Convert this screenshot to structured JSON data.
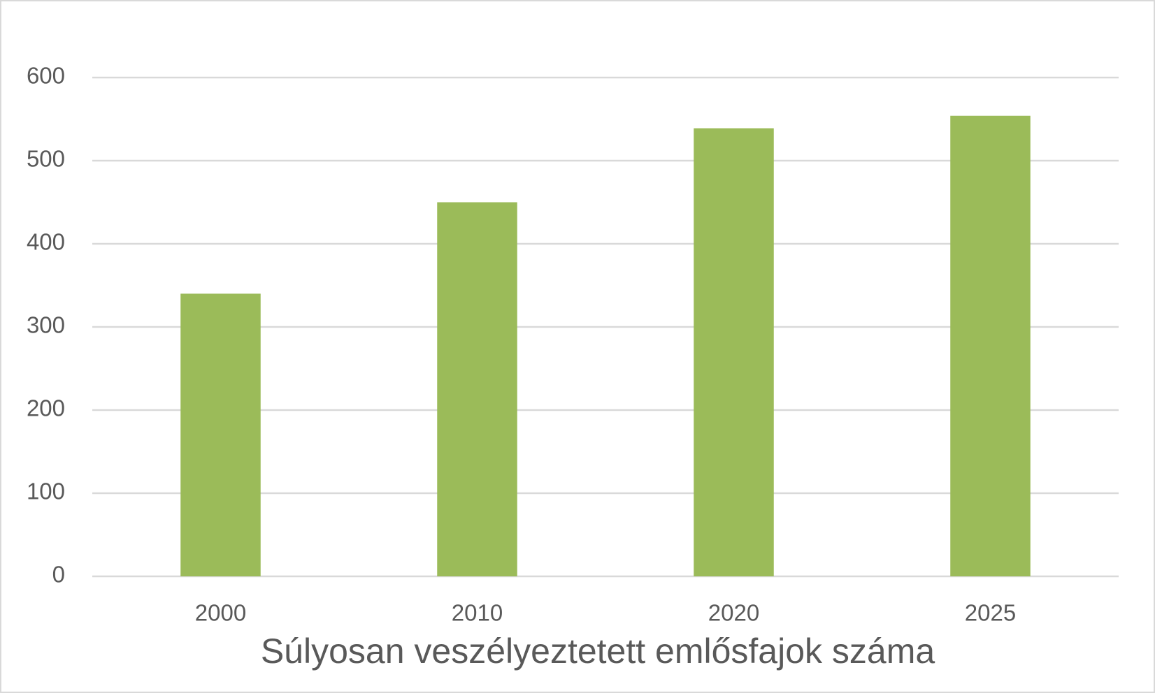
{
  "chart_data": {
    "type": "bar",
    "title": "Súlyosan veszélyeztetett emlősfajok száma",
    "categories": [
      "2000",
      "2010",
      "2020",
      "2025"
    ],
    "values": [
      340,
      450,
      539,
      554
    ],
    "color": "#9bbb59",
    "ylim": [
      0,
      600
    ],
    "yticks": [
      0,
      100,
      200,
      300,
      400,
      500,
      600
    ],
    "grid": true
  }
}
